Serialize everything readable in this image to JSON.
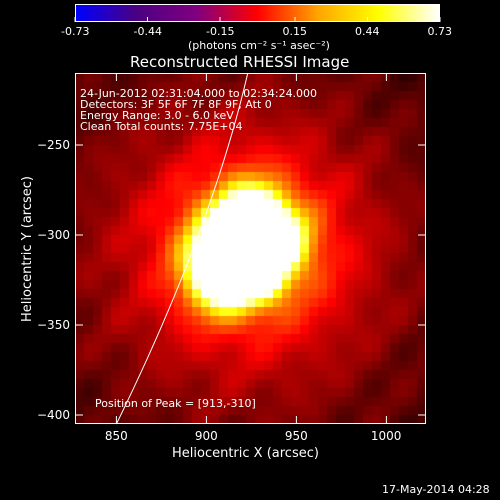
{
  "colorbar": {
    "ticks": [
      "-0.73",
      "-0.44",
      "-0.15",
      "0.15",
      "0.44",
      "0.73"
    ],
    "tick_values": [
      -0.73,
      -0.44,
      -0.15,
      0.15,
      0.44,
      0.73
    ],
    "range": [
      -0.73,
      0.73
    ],
    "units_label": "(photons cm⁻² s⁻¹ asec⁻²)"
  },
  "title": "Reconstructed RHESSI Image",
  "info": {
    "time_range": "24-Jun-2012 02:31:04.000 to 02:34:24.000",
    "detectors": "Detectors: 3F 5F 6F 7F 8F 9F, Att 0",
    "energy": "Energy Range: 3.0 - 6.0 keV",
    "clean": "Clean    Total counts: 7.75E+04"
  },
  "peak_label": "Position of Peak = [913,-310]",
  "footer_date": "17-May-2014 04:28",
  "chart_data": {
    "type": "heatmap",
    "xlabel": "Heliocentric X (arcsec)",
    "ylabel": "Heliocentric Y (arcsec)",
    "xlim": [
      827,
      1022
    ],
    "ylim": [
      -405,
      -210
    ],
    "xticks": [
      850,
      900,
      950,
      1000
    ],
    "yticks": [
      -250,
      -300,
      -350,
      -400
    ],
    "peak": [
      913,
      -310
    ],
    "limb_x_at_top": 923,
    "limb_x_at_bottom": 850,
    "colormap": "hot",
    "grid": false
  },
  "colors": {
    "background": "#000000",
    "foreground": "#ffffff",
    "colormap_stops": [
      "#0000ff",
      "#4b0082",
      "#800080",
      "#ff0000",
      "#ffa500",
      "#ffff00",
      "#ffffff"
    ]
  }
}
